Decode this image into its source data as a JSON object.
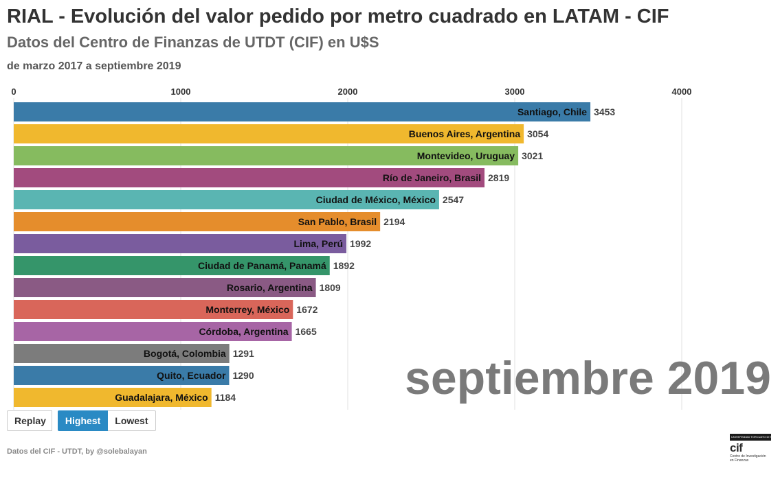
{
  "header": {
    "title": "RIAL - Evolución del valor pedido por metro cuadrado en LATAM - CIF",
    "subtitle": "Datos del Centro de Finanzas de UTDT (CIF) en U$S",
    "period_note": "de marzo 2017 a septiembre 2019"
  },
  "controls": {
    "replay_label": "Replay",
    "highest_label": "Highest",
    "lowest_label": "Lowest",
    "active": "Highest"
  },
  "footer": {
    "source": "Datos del CIF - UTDT, by @solebalayan"
  },
  "logo": {
    "university_text": "UNIVERSIDAD TORCUATO DI TELLA",
    "mark_text": "cif",
    "caption_line1": "Centro de Investigación",
    "caption_line2": "en Finanzas"
  },
  "chart_data": {
    "type": "bar",
    "orientation": "horizontal",
    "time_label": "septiembre 2019",
    "xlim": [
      0,
      4000
    ],
    "x_ticks": [
      0,
      1000,
      2000,
      3000,
      4000
    ],
    "x_tick_labels": [
      "0",
      "1000",
      "2000",
      "3000",
      "4000"
    ],
    "axis_position": "top",
    "grid": true,
    "categories": [
      "Santiago, Chile",
      "Buenos Aires, Argentina",
      "Montevideo, Uruguay",
      "Río de Janeiro, Brasil",
      "Ciudad de México, México",
      "San Pablo, Brasil",
      "Lima, Perú",
      "Ciudad de Panamá, Panamá",
      "Rosario, Argentina",
      "Monterrey, México",
      "Córdoba, Argentina",
      "Bogotá, Colombia",
      "Quito, Ecuador",
      "Guadalajara, México"
    ],
    "values": [
      3453,
      3054,
      3021,
      2819,
      2547,
      2194,
      1992,
      1892,
      1809,
      1672,
      1665,
      1291,
      1290,
      1184
    ],
    "colors": [
      "#3a7ba8",
      "#f0b82e",
      "#86bb5f",
      "#a24b7e",
      "#5ab5b2",
      "#e58d2c",
      "#7a5c9e",
      "#35956a",
      "#8a5a84",
      "#d9665a",
      "#a765a5",
      "#7c7c7c",
      "#3a7ba8",
      "#f0b82e"
    ],
    "title": "",
    "xlabel": "",
    "ylabel": ""
  }
}
